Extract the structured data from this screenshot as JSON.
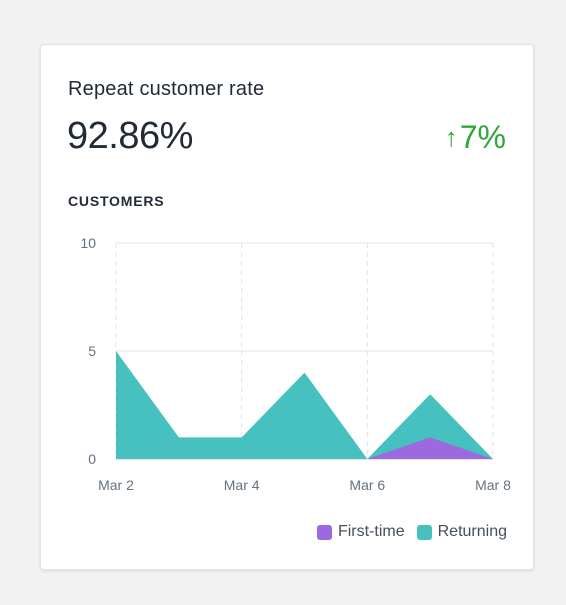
{
  "card": {
    "title": "Repeat customer rate",
    "metric": "92.86%",
    "change": "7%",
    "change_icon": "arrow-up-icon",
    "change_color": "#2fa838",
    "section_label": "CUSTOMERS"
  },
  "chart_data": {
    "type": "area",
    "stacked": true,
    "x": [
      0,
      1,
      2,
      3,
      4,
      5,
      6
    ],
    "tick_labels": [
      "Mar 2",
      "Mar 4",
      "Mar 6",
      "Mar 8"
    ],
    "tick_positions": [
      0,
      2,
      4,
      6
    ],
    "ylim": [
      0,
      10
    ],
    "y_ticks": [
      0,
      5,
      10
    ],
    "grid": true,
    "legend_position": "bottom-right",
    "series": [
      {
        "name": "First-time",
        "color": "#9c6ade",
        "values": [
          0,
          0,
          0,
          0,
          0,
          1,
          0
        ]
      },
      {
        "name": "Returning",
        "color": "#47c1bf",
        "values": [
          5,
          1,
          1,
          4,
          0,
          2,
          0
        ]
      }
    ]
  }
}
